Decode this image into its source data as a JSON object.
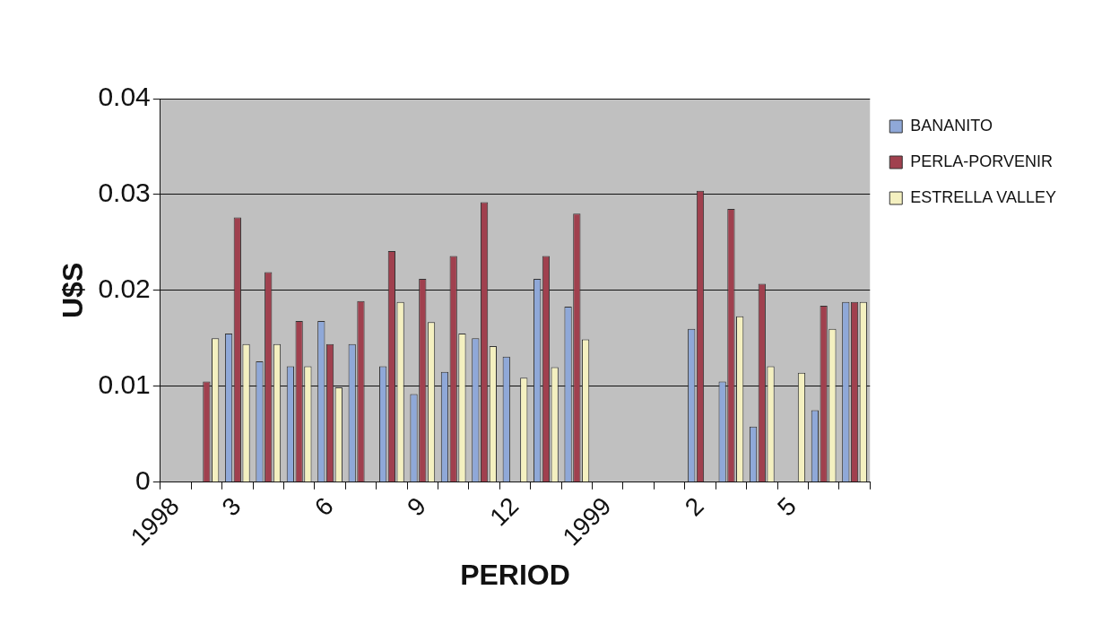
{
  "chart_data": {
    "type": "bar",
    "xlabel": "PERIOD",
    "ylabel": "U$S",
    "categories": [
      "1998",
      null,
      "3",
      null,
      null,
      "6",
      null,
      null,
      "9",
      null,
      null,
      "12",
      null,
      null,
      "1999",
      null,
      null,
      "2",
      null,
      null,
      "5",
      null,
      null
    ],
    "series": [
      {
        "name": "BANANITO",
        "color": "#8fa8d8",
        "values": [
          null,
          null,
          0.0155,
          0.0126,
          0.0121,
          0.0168,
          0.0144,
          0.0121,
          0.0092,
          0.0115,
          0.015,
          0.0131,
          0.0212,
          0.0183,
          null,
          null,
          null,
          0.016,
          0.0105,
          0.0058,
          null,
          0.0075,
          0.0188
        ]
      },
      {
        "name": "PERLA-PORVENIR",
        "color": "#a0404e",
        "values": [
          null,
          0.0105,
          0.0276,
          0.0219,
          0.0168,
          0.0144,
          0.0189,
          0.0241,
          0.0212,
          0.0236,
          0.0292,
          null,
          0.0236,
          0.028,
          null,
          null,
          null,
          0.0304,
          0.0285,
          0.0207,
          null,
          0.0184,
          0.0188
        ]
      },
      {
        "name": "ESTRELLA VALLEY",
        "color": "#f4f0c0",
        "values": [
          null,
          0.015,
          0.0144,
          0.0144,
          0.0121,
          0.0099,
          null,
          0.0188,
          0.0167,
          0.0155,
          0.0142,
          0.0109,
          0.012,
          0.0149,
          null,
          null,
          null,
          null,
          0.0173,
          0.0121,
          0.0114,
          0.016,
          0.0188
        ]
      }
    ],
    "ylim": [
      0,
      0.04
    ],
    "yticks": [
      0,
      0.01,
      0.02,
      0.03,
      0.04
    ],
    "grid": "y",
    "legend": "top right"
  }
}
